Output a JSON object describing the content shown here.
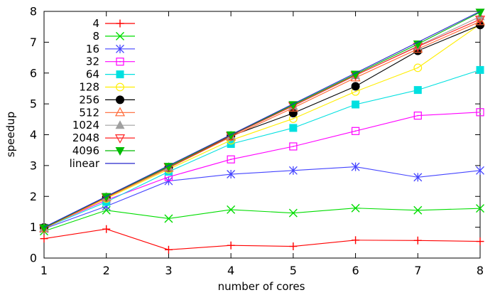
{
  "chart_data": {
    "type": "line",
    "title": "",
    "xlabel": "number of cores",
    "ylabel": "speedup",
    "xlim": [
      1,
      8
    ],
    "ylim": [
      0,
      8
    ],
    "xticks": [
      1,
      2,
      3,
      4,
      5,
      6,
      7,
      8
    ],
    "yticks": [
      0,
      1,
      2,
      3,
      4,
      5,
      6,
      7,
      8
    ],
    "grid": false,
    "legend_position": "top-left-inside",
    "x": [
      1,
      2,
      3,
      4,
      5,
      6,
      7,
      8
    ],
    "series": [
      {
        "name": "4",
        "color": "#ff0000",
        "marker": "plus",
        "values": [
          0.63,
          0.94,
          0.27,
          0.41,
          0.38,
          0.58,
          0.57,
          0.54
        ]
      },
      {
        "name": "8",
        "color": "#00dd00",
        "marker": "cross",
        "values": [
          0.87,
          1.55,
          1.28,
          1.57,
          1.46,
          1.62,
          1.55,
          1.61
        ]
      },
      {
        "name": "16",
        "color": "#4444ff",
        "marker": "asterisk",
        "values": [
          0.95,
          1.68,
          2.5,
          2.72,
          2.84,
          2.96,
          2.62,
          2.84
        ]
      },
      {
        "name": "32",
        "color": "#ff00ff",
        "marker": "square-open",
        "values": [
          0.98,
          1.88,
          2.63,
          3.2,
          3.62,
          4.12,
          4.62,
          4.73
        ]
      },
      {
        "name": "64",
        "color": "#00e0e0",
        "marker": "square-filled",
        "values": [
          0.97,
          1.82,
          2.8,
          3.7,
          4.22,
          4.98,
          5.45,
          6.1
        ]
      },
      {
        "name": "128",
        "color": "#ffee00",
        "marker": "circle-open",
        "values": [
          0.96,
          1.93,
          2.88,
          3.82,
          4.52,
          5.4,
          6.17,
          7.58
        ]
      },
      {
        "name": "256",
        "color": "#000000",
        "marker": "circle-filled",
        "values": [
          0.99,
          1.97,
          2.93,
          3.96,
          4.7,
          5.57,
          6.72,
          7.56
        ]
      },
      {
        "name": "512",
        "color": "#ff6633",
        "marker": "triangle-up-open",
        "values": [
          0.96,
          1.96,
          2.92,
          3.93,
          4.87,
          5.85,
          6.78,
          7.67
        ]
      },
      {
        "name": "1024",
        "color": "#a0a0a0",
        "marker": "triangle-up-filled",
        "values": [
          0.98,
          1.98,
          2.95,
          3.97,
          4.93,
          5.92,
          6.88,
          7.83
        ]
      },
      {
        "name": "2048",
        "color": "#ff2222",
        "marker": "triangle-down-open",
        "values": [
          0.97,
          1.98,
          2.96,
          3.97,
          4.94,
          5.93,
          6.86,
          7.74
        ]
      },
      {
        "name": "4096",
        "color": "#00bb00",
        "marker": "triangle-down-filled",
        "values": [
          0.98,
          1.99,
          2.97,
          3.99,
          4.97,
          5.96,
          6.94,
          7.97
        ]
      },
      {
        "name": "linear",
        "color": "#2929cc",
        "marker": "none",
        "values": [
          1,
          2,
          3,
          4,
          5,
          6,
          7,
          8
        ]
      }
    ]
  }
}
